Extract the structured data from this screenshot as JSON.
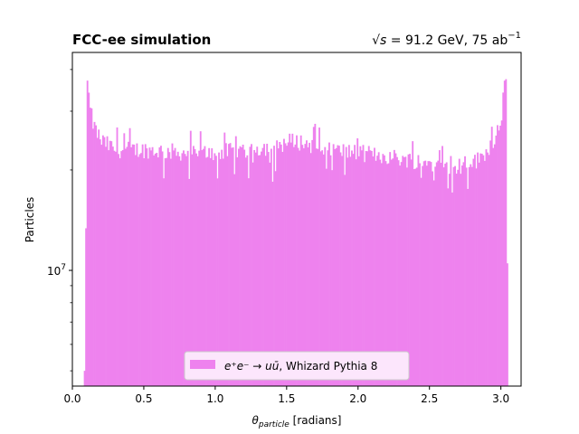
{
  "chart_data": {
    "type": "bar",
    "title_left": "FCC-ee simulation",
    "title_right": {
      "sqrt_s": "√s",
      "equals_text": " = 91.2 GeV, 75 ab",
      "exponent": "−1"
    },
    "xlabel": {
      "symbol": "θ",
      "subscript": "particle",
      "unit": " [radians]"
    },
    "ylabel": "Particles",
    "x_ticks": [
      "0.0",
      "0.5",
      "1.0",
      "1.5",
      "2.0",
      "2.5",
      "3.0"
    ],
    "y_tick_label": {
      "base": "10",
      "exponent": "7"
    },
    "xlim": [
      0,
      3.1416
    ],
    "ylim": [
      4500000,
      45000000
    ],
    "yscale": "log",
    "grid": false,
    "legend_position": "lower center",
    "series": [
      {
        "name": {
          "math": "e⁺e⁻ → uū",
          "rest": ", Whizard Pythia 8"
        },
        "color": "#ee82ee"
      }
    ],
    "bin_range": [
      0.08,
      3.05
    ],
    "bin_count": 300,
    "values_description_profile": [
      [
        0.08,
        5000000
      ],
      [
        0.09,
        5000000
      ],
      [
        0.1,
        38000000
      ],
      [
        0.105,
        37000000
      ],
      [
        0.115,
        34000000
      ],
      [
        0.125,
        30000000
      ],
      [
        0.15,
        27000000
      ],
      [
        0.2,
        24500000
      ],
      [
        0.3,
        23000000
      ],
      [
        0.5,
        23000000
      ],
      [
        0.8,
        22500000
      ],
      [
        1.0,
        22500000
      ],
      [
        1.2,
        23000000
      ],
      [
        1.4,
        23500000
      ],
      [
        1.55,
        24500000
      ],
      [
        1.8,
        23000000
      ],
      [
        2.0,
        22500000
      ],
      [
        2.2,
        22000000
      ],
      [
        2.5,
        21000000
      ],
      [
        2.7,
        20500000
      ],
      [
        2.85,
        21500000
      ],
      [
        2.95,
        24500000
      ],
      [
        3.0,
        29000000
      ],
      [
        3.02,
        35000000
      ],
      [
        3.03,
        39000000
      ],
      [
        3.04,
        36000000
      ],
      [
        3.045,
        10500000
      ],
      [
        3.05,
        10500000
      ]
    ]
  }
}
